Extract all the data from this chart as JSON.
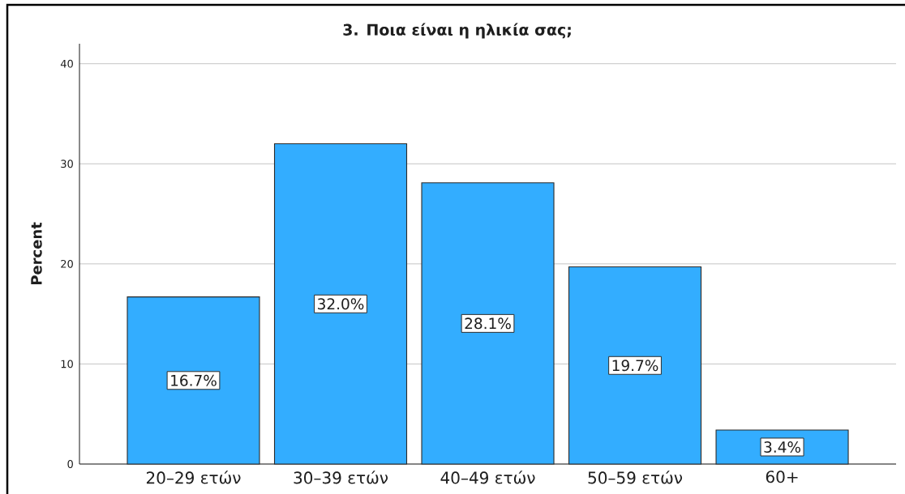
{
  "chart_data": {
    "type": "bar",
    "title": "3. Ποια είναι η ηλικία σας;",
    "ylabel": "Percent",
    "categories": [
      "20–29 ετών",
      "30–39 ετών",
      "40–49 ετών",
      "50–59 ετών",
      "60+"
    ],
    "values": [
      16.7,
      32.0,
      28.1,
      19.7,
      3.4
    ],
    "value_labels": [
      "16.7%",
      "32.0%",
      "28.1%",
      "19.7%",
      "3.4%"
    ],
    "color": "#33adff",
    "ylim": [
      0,
      42
    ],
    "yticks": [
      0,
      10,
      20,
      30,
      40
    ],
    "grid": "y"
  }
}
